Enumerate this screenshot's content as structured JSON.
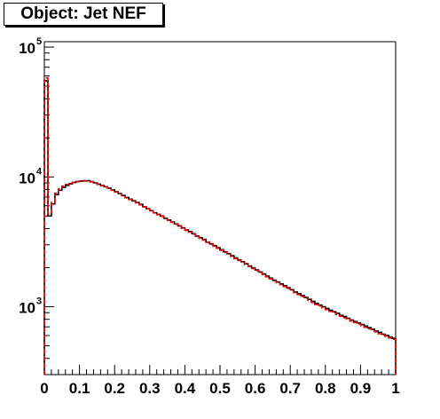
{
  "title": "Object: Jet NEF",
  "chart_data": {
    "type": "histogram",
    "title": "Object: Jet NEF",
    "xlabel": "",
    "ylabel": "",
    "xlim": [
      0,
      1
    ],
    "ylim": [
      300,
      110000
    ],
    "yscale": "log",
    "x_tick_labels": [
      "0",
      "0.1",
      "0.2",
      "0.3",
      "0.4",
      "0.5",
      "0.6",
      "0.7",
      "0.8",
      "0.9",
      "1"
    ],
    "y_tick_labels": [
      {
        "base": "10",
        "exp": "3",
        "value": 1000
      },
      {
        "base": "10",
        "exp": "4",
        "value": 10000
      },
      {
        "base": "10",
        "exp": "5",
        "value": 100000
      }
    ],
    "bin_width": 0.01,
    "grid": false,
    "series": [
      {
        "style": "solid",
        "color": "#000000",
        "values": [
          55000,
          5000,
          6200,
          7300,
          7900,
          8300,
          8600,
          8850,
          9050,
          9200,
          9300,
          9350,
          9350,
          9200,
          9000,
          8800,
          8600,
          8400,
          8200,
          7950,
          7700,
          7450,
          7200,
          6950,
          6750,
          6550,
          6350,
          6150,
          5900,
          5700,
          5500,
          5300,
          5150,
          5000,
          4800,
          4650,
          4500,
          4350,
          4200,
          4050,
          3900,
          3800,
          3650,
          3500,
          3400,
          3300,
          3150,
          3050,
          2950,
          2850,
          2750,
          2650,
          2560,
          2470,
          2380,
          2300,
          2220,
          2140,
          2060,
          1990,
          1920,
          1850,
          1790,
          1720,
          1660,
          1600,
          1550,
          1500,
          1450,
          1400,
          1350,
          1300,
          1260,
          1220,
          1180,
          1140,
          1100,
          1060,
          1030,
          1000,
          970,
          940,
          915,
          890,
          860,
          840,
          815,
          790,
          770,
          750,
          730,
          710,
          690,
          670,
          650,
          635,
          615,
          600,
          585,
          570
        ]
      },
      {
        "style": "dashed",
        "color": "#ff0000",
        "values": [
          58000,
          5200,
          6400,
          7500,
          8100,
          8500,
          8750,
          8950,
          9100,
          9200,
          9280,
          9300,
          9280,
          9150,
          8950,
          8750,
          8550,
          8350,
          8150,
          7900,
          7650,
          7400,
          7150,
          6900,
          6700,
          6500,
          6300,
          6100,
          5880,
          5680,
          5480,
          5280,
          5120,
          4960,
          4780,
          4620,
          4470,
          4320,
          4170,
          4020,
          3880,
          3760,
          3620,
          3480,
          3370,
          3260,
          3130,
          3020,
          2920,
          2820,
          2720,
          2620,
          2530,
          2440,
          2350,
          2270,
          2190,
          2110,
          2040,
          1970,
          1900,
          1830,
          1770,
          1700,
          1640,
          1580,
          1530,
          1480,
          1430,
          1380,
          1330,
          1280,
          1240,
          1200,
          1160,
          1120,
          1080,
          1040,
          1010,
          980,
          950,
          920,
          895,
          870,
          845,
          820,
          800,
          775,
          755,
          735,
          715,
          695,
          675,
          655,
          640,
          620,
          605,
          590,
          575,
          560
        ]
      }
    ]
  }
}
